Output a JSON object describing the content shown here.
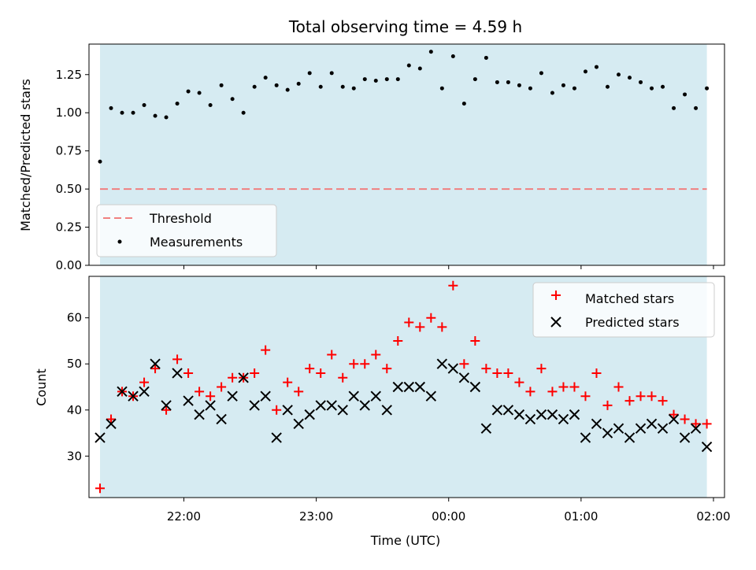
{
  "figure": {
    "title": "Total observing time = 4.59 h",
    "xlabel": "Time (UTC)"
  },
  "colors": {
    "band": "#add8e6",
    "threshold": "#f08080",
    "measurement": "#000000",
    "matched": "#ff0000",
    "predicted": "#000000"
  },
  "chart_data": [
    {
      "type": "scatter",
      "panel": "top",
      "ylabel": "Matched/Predicted stars",
      "ylim": [
        0,
        1.45
      ],
      "yticks": [
        0.0,
        0.25,
        0.5,
        0.75,
        1.0,
        1.25
      ],
      "ytick_labels": [
        "0.00",
        "0.25",
        "0.50",
        "0.75",
        "1.00",
        "1.25"
      ],
      "xlim": [
        "21:17",
        "02:05"
      ],
      "observing_window": [
        "21:22",
        "01:57"
      ],
      "threshold": 0.5,
      "grid": false,
      "legend_position": "lower-left",
      "legend": [
        "Threshold",
        "Measurements"
      ],
      "x": [
        "21:22",
        "21:27",
        "21:32",
        "21:37",
        "21:42",
        "21:47",
        "21:52",
        "21:57",
        "22:02",
        "22:07",
        "22:12",
        "22:17",
        "22:22",
        "22:27",
        "22:32",
        "22:37",
        "22:42",
        "22:47",
        "22:52",
        "22:57",
        "23:02",
        "23:07",
        "23:12",
        "23:17",
        "23:22",
        "23:27",
        "23:32",
        "23:37",
        "23:42",
        "23:47",
        "23:52",
        "23:57",
        "00:02",
        "00:07",
        "00:12",
        "00:17",
        "00:22",
        "00:27",
        "00:32",
        "00:37",
        "00:42",
        "00:47",
        "00:52",
        "00:57",
        "01:02",
        "01:07",
        "01:12",
        "01:17",
        "01:22",
        "01:27",
        "01:32",
        "01:37",
        "01:42",
        "01:47",
        "01:52",
        "01:57"
      ],
      "series": [
        {
          "name": "Measurements",
          "values": [
            0.68,
            1.03,
            1.0,
            1.0,
            1.05,
            0.98,
            0.97,
            1.06,
            1.14,
            1.13,
            1.05,
            1.18,
            1.09,
            1.0,
            1.17,
            1.23,
            1.18,
            1.15,
            1.19,
            1.26,
            1.17,
            1.26,
            1.17,
            1.16,
            1.22,
            1.21,
            1.22,
            1.22,
            1.31,
            1.29,
            1.4,
            1.16,
            1.37,
            1.06,
            1.22,
            1.36,
            1.2,
            1.2,
            1.18,
            1.16,
            1.26,
            1.13,
            1.18,
            1.16,
            1.27,
            1.3,
            1.17,
            1.25,
            1.23,
            1.2,
            1.16,
            1.17,
            1.03,
            1.12,
            1.03,
            1.16
          ]
        }
      ]
    },
    {
      "type": "scatter",
      "panel": "bottom",
      "ylabel": "Count",
      "ylim": [
        21,
        69
      ],
      "yticks": [
        30,
        40,
        50,
        60
      ],
      "ytick_labels": [
        "30",
        "40",
        "50",
        "60"
      ],
      "xlim": [
        "21:17",
        "02:05"
      ],
      "xticks": [
        "22:00",
        "23:00",
        "00:00",
        "01:00",
        "02:00"
      ],
      "observing_window": [
        "21:22",
        "01:57"
      ],
      "grid": false,
      "legend_position": "upper-right",
      "legend": [
        "Matched stars",
        "Predicted stars"
      ],
      "x": [
        "21:22",
        "21:27",
        "21:32",
        "21:37",
        "21:42",
        "21:47",
        "21:52",
        "21:57",
        "22:02",
        "22:07",
        "22:12",
        "22:17",
        "22:22",
        "22:27",
        "22:32",
        "22:37",
        "22:42",
        "22:47",
        "22:52",
        "22:57",
        "23:02",
        "23:07",
        "23:12",
        "23:17",
        "23:22",
        "23:27",
        "23:32",
        "23:37",
        "23:42",
        "23:47",
        "23:52",
        "23:57",
        "00:02",
        "00:07",
        "00:12",
        "00:17",
        "00:22",
        "00:27",
        "00:32",
        "00:37",
        "00:42",
        "00:47",
        "00:52",
        "00:57",
        "01:02",
        "01:07",
        "01:12",
        "01:17",
        "01:22",
        "01:27",
        "01:32",
        "01:37",
        "01:42",
        "01:47",
        "01:52",
        "01:57"
      ],
      "series": [
        {
          "name": "Matched stars",
          "values": [
            23,
            38,
            44,
            43,
            46,
            49,
            40,
            51,
            48,
            44,
            43,
            45,
            47,
            47,
            48,
            53,
            40,
            46,
            44,
            49,
            48,
            52,
            47,
            50,
            50,
            52,
            49,
            55,
            59,
            58,
            60,
            58,
            67,
            50,
            55,
            49,
            48,
            48,
            46,
            44,
            49,
            44,
            45,
            45,
            43,
            48,
            41,
            45,
            42,
            43,
            43,
            42,
            39,
            38,
            37,
            37
          ]
        },
        {
          "name": "Predicted stars",
          "values": [
            34,
            37,
            44,
            43,
            44,
            50,
            41,
            48,
            42,
            39,
            41,
            38,
            43,
            47,
            41,
            43,
            34,
            40,
            37,
            39,
            41,
            41,
            40,
            43,
            41,
            43,
            40,
            45,
            45,
            45,
            43,
            50,
            49,
            47,
            45,
            36,
            40,
            40,
            39,
            38,
            39,
            39,
            38,
            39,
            34,
            37,
            35,
            36,
            34,
            36,
            37,
            36,
            38,
            34,
            36,
            32
          ]
        }
      ]
    }
  ]
}
